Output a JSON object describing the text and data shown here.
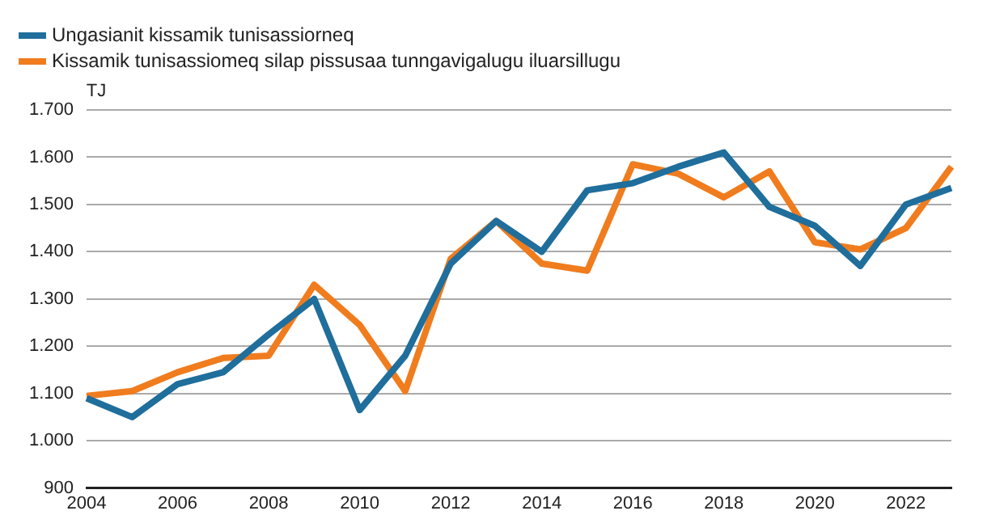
{
  "chart_data": {
    "type": "line",
    "ylabel": "TJ",
    "categories": [
      "2004",
      null,
      "2006",
      null,
      "2008",
      null,
      "2010",
      null,
      "2012",
      null,
      "2014",
      null,
      "2016",
      null,
      "2018",
      null,
      "2020",
      null,
      "2022",
      null
    ],
    "series": [
      {
        "name": "Ungasianit kissamik tunisassiorneq",
        "color": "#1f6e9c",
        "values": [
          1090,
          1050,
          1120,
          1145,
          1225,
          1300,
          1065,
          1180,
          1375,
          1465,
          1400,
          1530,
          1545,
          1580,
          1610,
          1495,
          1455,
          1370,
          1500,
          1535
        ]
      },
      {
        "name": "Kissamik tunisassiomeq silap pissusaa tunngavigalugu iluarsillugu",
        "color": "#f07c1e",
        "values": [
          1095,
          1105,
          1145,
          1175,
          1180,
          1330,
          1245,
          1105,
          1385,
          1465,
          1375,
          1360,
          1585,
          1565,
          1515,
          1570,
          1420,
          1405,
          1450,
          1580
        ]
      }
    ],
    "ylim": [
      900,
      1700
    ],
    "yticks": [
      {
        "value": 900,
        "label": "900"
      },
      {
        "value": 1000,
        "label": "1.000"
      },
      {
        "value": 1100,
        "label": "1.100"
      },
      {
        "value": 1200,
        "label": "1.200"
      },
      {
        "value": 1300,
        "label": "1.300"
      },
      {
        "value": 1400,
        "label": "1.400"
      },
      {
        "value": 1500,
        "label": "1.500"
      },
      {
        "value": 1600,
        "label": "1.600"
      },
      {
        "value": 1700,
        "label": "1.700"
      }
    ],
    "grid": "y",
    "legend": "top left",
    "marker": "none",
    "line_style": "solid"
  }
}
